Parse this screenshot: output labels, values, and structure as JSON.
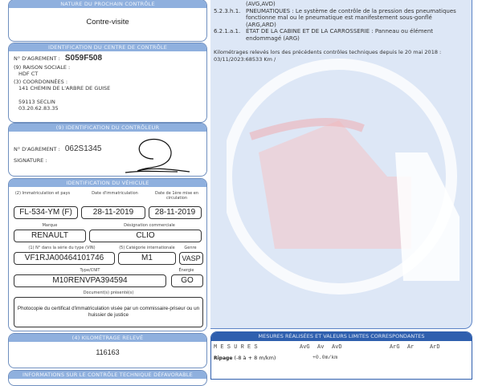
{
  "next_control": {
    "header": "NATURE DU PROCHAIN CONTRÔLE",
    "value": "Contre-visite"
  },
  "centre": {
    "header": "IDENTIFICATION DU CENTRE DE CONTRÔLE",
    "agrement_label": "N° D'AGREMENT :",
    "agrement": "S059F508",
    "raison_label": "(9) RAISON SOCIALE :",
    "raison": "HDF CT",
    "coord_label": "(3) COORDONNÉES :",
    "address": "141 CHEMIN DE L'ARBRE DE GUISE",
    "city": "59113 SECLIN",
    "phone": "03.20.62.83.35"
  },
  "controleur": {
    "header": "(9) IDENTIFICATION DU CONTRÔLEUR",
    "agrement_label": "N° D'AGREMENT :",
    "agrement": "062S1345",
    "signature_label": "SIGNATURE :"
  },
  "vehicule": {
    "header": "IDENTIFICATION DU VÉHICULE",
    "immat_label": "(2) Immatriculation et pays",
    "immat": "FL-534-YM (F)",
    "date_immat_label": "Date d'immatriculation",
    "date_immat": "28-11-2019",
    "date_circ_label": "Date de 1ère mise en circulation",
    "date_circ": "28-11-2019",
    "marque_label": "Marque",
    "marque": "RENAULT",
    "designation_label": "Désignation commerciale",
    "designation": "CLIO",
    "vin_label": "(1) N° dans la série du type (VIN)",
    "vin": "VF1RJA00464101746",
    "categorie_label": "(5) Catégorie internationale",
    "categorie": "M1",
    "genre_label": "Genre",
    "genre": "VASP",
    "type_label": "Type/CNIT",
    "type": "M10RENVPA394594",
    "energie_label": "Énergie",
    "energie": "GO",
    "docs_label": "Document(s) présenté(s)",
    "docs": "Photocopie du certificat d'immatriculation visée par un commissaire-priseur ou un huissier de justice"
  },
  "kilometrage": {
    "header": "(4) KILOMÉTRAGE RELEVÉ",
    "value": "116163"
  },
  "infos": {
    "header": "INFORMATIONS SUR LE CONTRÔLE TECHNIQUE DÉFAVORABLE"
  },
  "defects": [
    {
      "code": "",
      "text": "(AVG,AVD)"
    },
    {
      "code": "5.2.3.h.1.",
      "text": "PNEUMATIQUES : Le système de contrôle de la pression des pneumatiques fonctionne mal ou le pneumatique est manifestement sous-gonflé (ARG,ARD)"
    },
    {
      "code": "6.2.1.a.1.",
      "text": "ÉTAT DE LA CABINE ET DE LA CARROSSERIE : Panneau ou élément endommagé (ARG)"
    }
  ],
  "km_history": {
    "label": "Kilométrages relevés lors des précédents contrôles techniques depuis le 20 mai 2018 :",
    "values": "03/11/2023:68533 Km /"
  },
  "mesures": {
    "header": "MESURES RÉALISÉES ET VALEURS LIMITES CORRESPONDANTES",
    "title": "M E S U R E S",
    "cols": [
      "AvG",
      "Av",
      "AvD",
      "ArG",
      "Ar",
      "ArD"
    ],
    "ripage_label": "Ripage",
    "ripage_limits": "(-8 à + 8 m/km)",
    "ripage_value": "+0.0m/km"
  }
}
